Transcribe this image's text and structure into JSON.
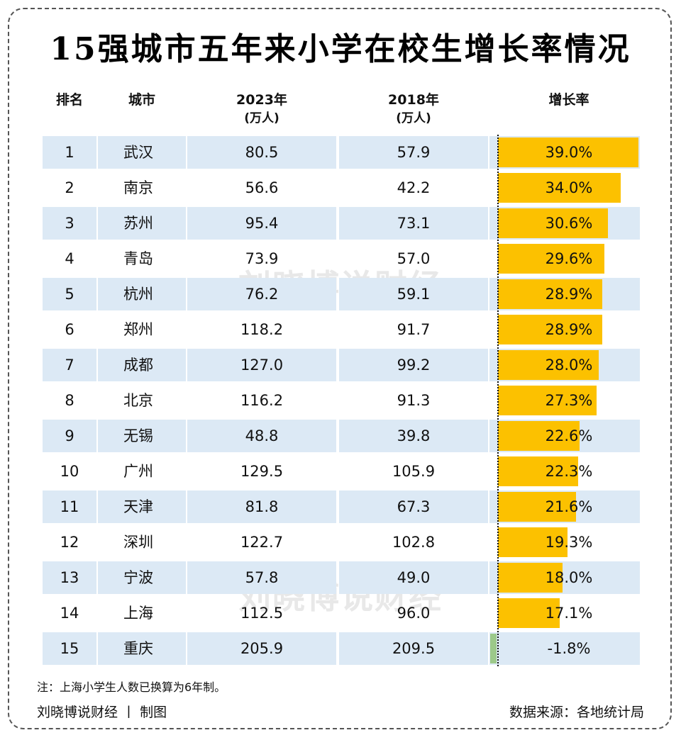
{
  "title": "15强城市五年来小学在校生增长率情况",
  "headers": {
    "rank": "排名",
    "city": "城市",
    "y2023": "2023年",
    "y2023_unit": "(万人)",
    "y2018": "2018年",
    "y2018_unit": "(万人)",
    "rate": "增长率"
  },
  "watermark": "刘晓博说财经",
  "note": "注：上海小学生人数已换算为6年制。",
  "footer": {
    "left": "刘晓博说财经 丨 制图",
    "right": "数据来源：各地统计局"
  },
  "colors": {
    "positive_bar": "#fcc100",
    "negative_bar": "#9cc98a",
    "row_shade": "#dce9f5"
  },
  "chart_data": {
    "type": "table",
    "columns": [
      "排名",
      "城市",
      "2023年(万人)",
      "2018年(万人)",
      "增长率"
    ],
    "rows": [
      {
        "rank": "1",
        "city": "武汉",
        "v2023": "80.5",
        "v2018": "57.9",
        "rate": "39.0%",
        "rate_value": 39.0
      },
      {
        "rank": "2",
        "city": "南京",
        "v2023": "56.6",
        "v2018": "42.2",
        "rate": "34.0%",
        "rate_value": 34.0
      },
      {
        "rank": "3",
        "city": "苏州",
        "v2023": "95.4",
        "v2018": "73.1",
        "rate": "30.6%",
        "rate_value": 30.6
      },
      {
        "rank": "4",
        "city": "青岛",
        "v2023": "73.9",
        "v2018": "57.0",
        "rate": "29.6%",
        "rate_value": 29.6
      },
      {
        "rank": "5",
        "city": "杭州",
        "v2023": "76.2",
        "v2018": "59.1",
        "rate": "28.9%",
        "rate_value": 28.9
      },
      {
        "rank": "6",
        "city": "郑州",
        "v2023": "118.2",
        "v2018": "91.7",
        "rate": "28.9%",
        "rate_value": 28.9
      },
      {
        "rank": "7",
        "city": "成都",
        "v2023": "127.0",
        "v2018": "99.2",
        "rate": "28.0%",
        "rate_value": 28.0
      },
      {
        "rank": "8",
        "city": "北京",
        "v2023": "116.2",
        "v2018": "91.3",
        "rate": "27.3%",
        "rate_value": 27.3
      },
      {
        "rank": "9",
        "city": "无锡",
        "v2023": "48.8",
        "v2018": "39.8",
        "rate": "22.6%",
        "rate_value": 22.6
      },
      {
        "rank": "10",
        "city": "广州",
        "v2023": "129.5",
        "v2018": "105.9",
        "rate": "22.3%",
        "rate_value": 22.3
      },
      {
        "rank": "11",
        "city": "天津",
        "v2023": "81.8",
        "v2018": "67.3",
        "rate": "21.6%",
        "rate_value": 21.6
      },
      {
        "rank": "12",
        "city": "深圳",
        "v2023": "122.7",
        "v2018": "102.8",
        "rate": "19.3%",
        "rate_value": 19.3
      },
      {
        "rank": "13",
        "city": "宁波",
        "v2023": "57.8",
        "v2018": "49.0",
        "rate": "18.0%",
        "rate_value": 18.0
      },
      {
        "rank": "14",
        "city": "上海",
        "v2023": "112.5",
        "v2018": "96.0",
        "rate": "17.1%",
        "rate_value": 17.1
      },
      {
        "rank": "15",
        "city": "重庆",
        "v2023": "205.9",
        "v2018": "209.5",
        "rate": "-1.8%",
        "rate_value": -1.8
      }
    ],
    "rate_axis_min": 0,
    "rate_axis_max": 39.0
  }
}
